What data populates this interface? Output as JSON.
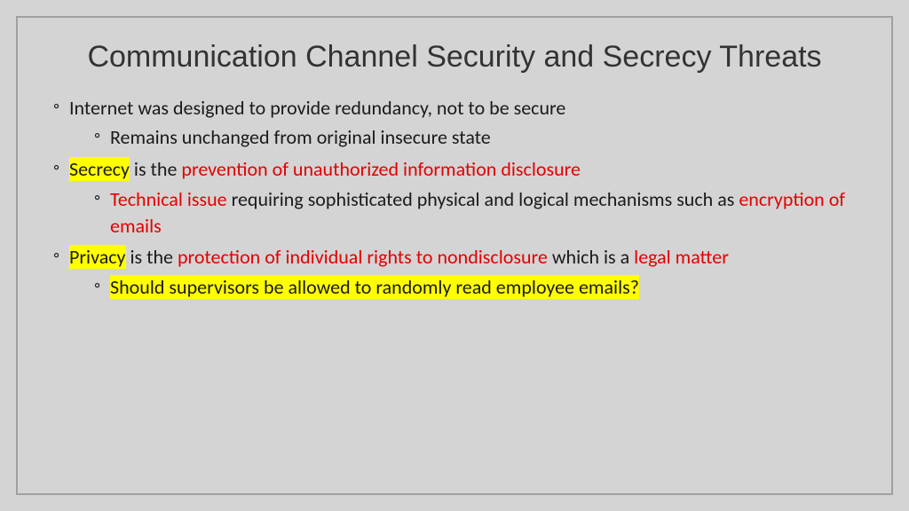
{
  "colors": {
    "background": "#d4d4d4",
    "frame_border": "#a0a0a0",
    "title_text": "#333333",
    "body_text": "#1a1a1a",
    "highlight_bg": "#ffff00",
    "emphasis_text": "#e60000"
  },
  "typography": {
    "title_fontsize": 34,
    "title_weight": 300,
    "body_fontsize": 22
  },
  "title": "Communication Channel Security and Secrecy Threats",
  "bullets": {
    "b1": "Internet was designed to provide redundancy, not to be secure",
    "b1a": "Remains unchanged from original insecure state",
    "b2_hl": "Secrecy",
    "b2_mid": " is the ",
    "b2_red": "prevention of unauthorized information disclosure",
    "b2a_red1": "Technical issue",
    "b2a_mid": " requiring sophisticated physical and logical mechanisms such as ",
    "b2a_red2": "encryption of emails",
    "b3_hl": "Privacy",
    "b3_mid1": " is the ",
    "b3_red1": "protection of individual rights to nondisclosure",
    "b3_mid2": " which is a ",
    "b3_red2": "legal matter",
    "b3a_hl": "Should supervisors be allowed to randomly read employee emails?"
  }
}
